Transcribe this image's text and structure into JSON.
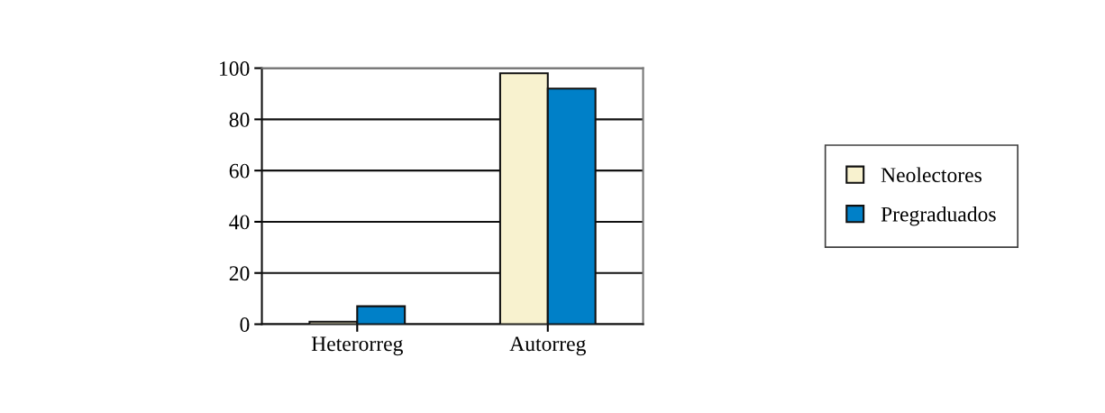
{
  "chart_data": {
    "type": "bar",
    "categories": [
      "Heterorreg",
      "Autorreg"
    ],
    "series": [
      {
        "name": "Neolectores",
        "color": "#f8f2cf",
        "values": [
          1,
          98
        ]
      },
      {
        "name": "Pregraduados",
        "color": "#0080c8",
        "values": [
          7,
          92
        ]
      }
    ],
    "ylim": [
      0,
      100
    ],
    "yticks": [
      0,
      20,
      40,
      60,
      80,
      100
    ],
    "grid": "y",
    "legend": "right"
  }
}
